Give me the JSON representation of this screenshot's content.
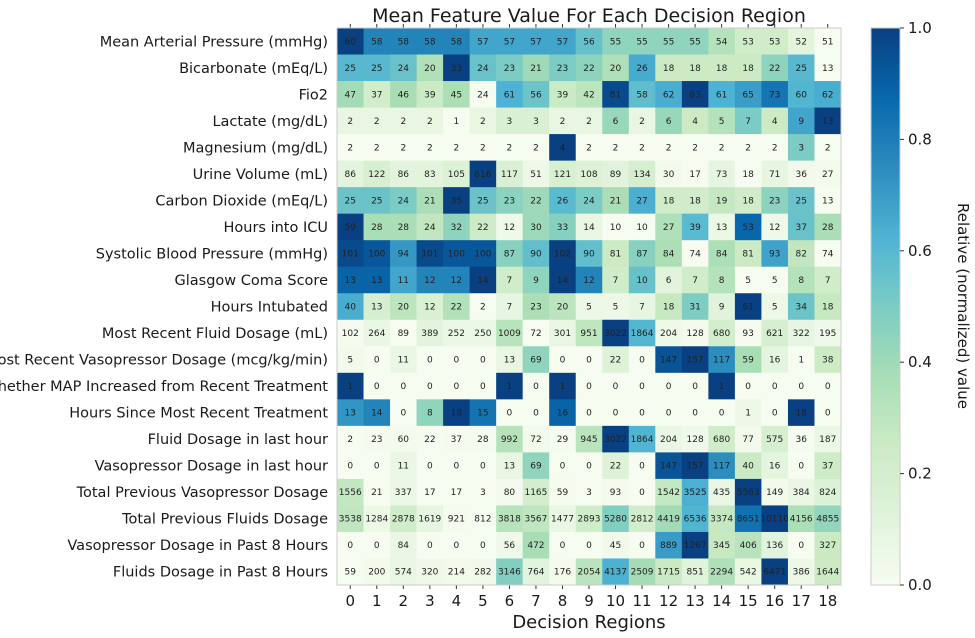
{
  "chart_data": {
    "type": "heatmap",
    "title": "Mean Feature Value For Each Decision Region",
    "xlabel": "Decision Regions",
    "colorbar_label": "Relative (normalized) value",
    "colorbar_ticks": [
      "0.0",
      "0.2",
      "0.4",
      "0.6",
      "0.8",
      "1.0"
    ],
    "colorbar_range": [
      0,
      1
    ],
    "colormap": [
      "#f7fcf0",
      "#e0f3db",
      "#ccebc5",
      "#a8ddb5",
      "#7bccc4",
      "#4eb3d3",
      "#2b8cbe",
      "#0868ac",
      "#084081"
    ],
    "columns": [
      "0",
      "1",
      "2",
      "3",
      "4",
      "5",
      "6",
      "7",
      "8",
      "9",
      "10",
      "11",
      "12",
      "13",
      "14",
      "15",
      "16",
      "17",
      "18"
    ],
    "rows": [
      "Mean Arterial Pressure (mmHg)",
      "Bicarbonate (mEq/L)",
      "Fio2",
      "Lactate (mg/dL)",
      "Magnesium (mg/dL)",
      "Urine Volume (mL)",
      "Carbon Dioxide (mEq/L)",
      "Hours into ICU",
      "Systolic Blood Pressure (mmHg)",
      "Glasgow Coma Score",
      "Hours Intubated",
      "Most Recent Fluid Dosage (mL)",
      "Most Recent Vasopressor Dosage (mcg/kg/min)",
      "Whether MAP Increased from Recent Treatment",
      "Hours Since Most Recent Treatment",
      "Fluid Dosage in last hour",
      "Vasopressor Dosage in last hour",
      "Total Previous Vasopressor Dosage",
      "Total Previous Fluids Dosage",
      "Vasopressor Dosage in Past 8 Hours",
      "Fluids Dosage in Past 8 Hours"
    ],
    "values": [
      [
        60,
        58,
        58,
        58,
        58,
        57,
        57,
        57,
        57,
        56,
        55,
        55,
        55,
        55,
        54,
        53,
        53,
        52,
        51
      ],
      [
        25,
        25,
        24,
        20,
        33,
        24,
        23,
        21,
        23,
        22,
        20,
        26,
        18,
        18,
        18,
        18,
        22,
        25,
        13
      ],
      [
        47,
        37,
        46,
        39,
        45,
        24,
        61,
        56,
        39,
        42,
        81,
        58,
        62,
        83,
        61,
        65,
        73,
        60,
        62
      ],
      [
        2,
        2,
        2,
        2,
        1,
        2,
        3,
        3,
        2,
        2,
        6,
        2,
        6,
        4,
        5,
        7,
        4,
        9,
        13
      ],
      [
        2,
        2,
        2,
        2,
        2,
        2,
        2,
        2,
        4,
        2,
        2,
        2,
        2,
        2,
        2,
        2,
        2,
        3,
        2
      ],
      [
        86,
        122,
        86,
        83,
        105,
        616,
        117,
        51,
        121,
        108,
        89,
        134,
        30,
        17,
        73,
        18,
        71,
        36,
        27
      ],
      [
        25,
        25,
        24,
        21,
        35,
        25,
        23,
        22,
        26,
        24,
        21,
        27,
        18,
        18,
        19,
        18,
        23,
        25,
        13
      ],
      [
        59,
        28,
        28,
        24,
        32,
        22,
        12,
        30,
        33,
        14,
        10,
        10,
        27,
        39,
        13,
        53,
        12,
        37,
        28
      ],
      [
        101,
        100,
        94,
        101,
        100,
        100,
        87,
        90,
        102,
        90,
        81,
        87,
        84,
        74,
        84,
        81,
        93,
        82,
        74
      ],
      [
        13,
        13,
        11,
        12,
        12,
        14,
        7,
        9,
        14,
        12,
        7,
        10,
        6,
        7,
        8,
        5,
        5,
        8,
        7
      ],
      [
        40,
        13,
        20,
        12,
        22,
        2,
        7,
        23,
        20,
        5,
        5,
        7,
        18,
        31,
        9,
        61,
        5,
        34,
        18
      ],
      [
        102,
        264,
        89,
        389,
        252,
        250,
        1009,
        72,
        301,
        951,
        3022,
        1864,
        204,
        128,
        680,
        93,
        621,
        322,
        195
      ],
      [
        5,
        0,
        11,
        0,
        0,
        0,
        13,
        69,
        0,
        0,
        22,
        0,
        147,
        157,
        117,
        59,
        16,
        1,
        38
      ],
      [
        1,
        0,
        0,
        0,
        0,
        0,
        1,
        0,
        1,
        0,
        0,
        0,
        0,
        0,
        1,
        0,
        0,
        0,
        0
      ],
      [
        13,
        14,
        0,
        8,
        18,
        15,
        0,
        0,
        16,
        0,
        0,
        0,
        0,
        0,
        0,
        1,
        0,
        18,
        0
      ],
      [
        2,
        23,
        60,
        22,
        37,
        28,
        992,
        72,
        29,
        945,
        3022,
        1864,
        204,
        128,
        680,
        77,
        575,
        36,
        187
      ],
      [
        0,
        0,
        11,
        0,
        0,
        0,
        13,
        69,
        0,
        0,
        22,
        0,
        147,
        157,
        117,
        40,
        16,
        0,
        37
      ],
      [
        1556,
        21,
        337,
        17,
        17,
        3,
        80,
        1165,
        59,
        3,
        93,
        0,
        1542,
        3525,
        435,
        5563,
        149,
        384,
        824
      ],
      [
        3538,
        1284,
        2878,
        1619,
        921,
        812,
        3818,
        3567,
        1477,
        2893,
        5280,
        2812,
        4419,
        6536,
        3374,
        8651,
        10110,
        4156,
        4855
      ],
      [
        0,
        0,
        84,
        0,
        0,
        0,
        56,
        472,
        0,
        0,
        45,
        0,
        889,
        1267,
        345,
        406,
        136,
        0,
        327
      ],
      [
        59,
        200,
        574,
        320,
        214,
        282,
        3146,
        764,
        176,
        2054,
        4137,
        2509,
        1715,
        851,
        2294,
        542,
        6471,
        386,
        1644
      ]
    ]
  }
}
